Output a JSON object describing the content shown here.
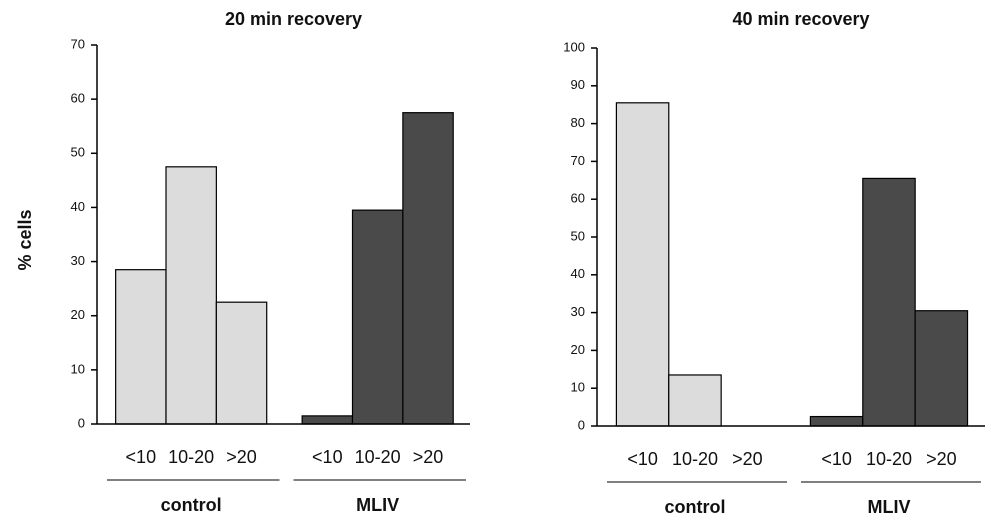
{
  "chart_data": [
    {
      "type": "bar",
      "title": "20 min recovery",
      "ylabel": "% cells",
      "categories": [
        "<10",
        "10-20",
        ">20"
      ],
      "series": [
        {
          "name": "control",
          "color": "#dcdcdc",
          "values": [
            28.5,
            47.5,
            22.5
          ]
        },
        {
          "name": "MLIV",
          "color": "#4a4a4a",
          "values": [
            1.5,
            39.5,
            57.5
          ]
        }
      ],
      "ylim": [
        0,
        70
      ],
      "yticks": [
        0,
        10,
        20,
        30,
        40,
        50,
        60,
        70
      ]
    },
    {
      "type": "bar",
      "title": "40 min recovery",
      "categories": [
        "<10",
        "10-20",
        ">20"
      ],
      "series": [
        {
          "name": "control",
          "color": "#dcdcdc",
          "values": [
            85.5,
            13.5,
            0
          ]
        },
        {
          "name": "MLIV",
          "color": "#4a4a4a",
          "values": [
            2.5,
            65.5,
            30.5
          ]
        }
      ],
      "ylim": [
        0,
        100
      ],
      "yticks": [
        0,
        10,
        20,
        30,
        40,
        50,
        60,
        70,
        80,
        90,
        100
      ]
    }
  ]
}
